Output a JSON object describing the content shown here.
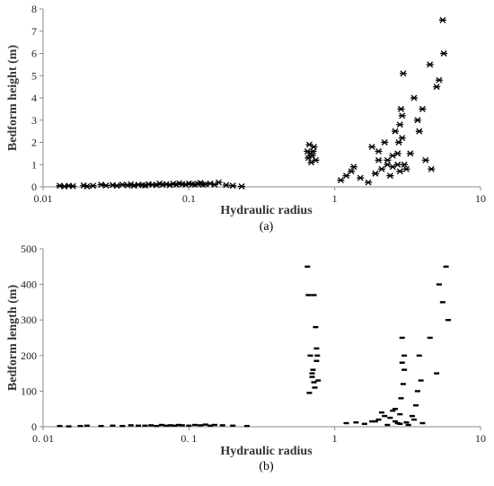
{
  "chart_data": [
    {
      "type": "scatter",
      "panel_label": "(a)",
      "xlabel": "Hydraulic radius",
      "ylabel": "Bedform height (m)",
      "xscale": "log",
      "xlim": [
        0.01,
        10
      ],
      "ylim": [
        0,
        8
      ],
      "xtick_labels": [
        "0.01",
        "0.1",
        "1",
        "10"
      ],
      "ytick_labels": [
        "0",
        "1",
        "2",
        "3",
        "4",
        "5",
        "6",
        "7",
        "8"
      ],
      "grid": false,
      "marker": "asterisk",
      "color": "#000000",
      "x": [
        0.013,
        0.014,
        0.015,
        0.016,
        0.019,
        0.02,
        0.022,
        0.025,
        0.027,
        0.03,
        0.032,
        0.035,
        0.038,
        0.04,
        0.042,
        0.045,
        0.048,
        0.05,
        0.053,
        0.056,
        0.06,
        0.063,
        0.066,
        0.07,
        0.074,
        0.078,
        0.082,
        0.086,
        0.09,
        0.095,
        0.1,
        0.105,
        0.11,
        0.115,
        0.12,
        0.125,
        0.13,
        0.14,
        0.15,
        0.16,
        0.18,
        0.2,
        0.23,
        0.65,
        0.66,
        0.68,
        0.7,
        0.72,
        0.74,
        0.67,
        0.69,
        0.71,
        1.1,
        1.2,
        1.3,
        1.35,
        1.5,
        1.7,
        1.8,
        1.9,
        2.0,
        2.1,
        2.2,
        2.3,
        2.4,
        2.5,
        2.6,
        2.7,
        2.8,
        2.9,
        3.0,
        2.75,
        2.8,
        2.85,
        2.9,
        2.95,
        3.1,
        3.3,
        3.5,
        3.7,
        3.8,
        4.0,
        4.2,
        4.5,
        4.6,
        5.0,
        5.2,
        5.5,
        5.6,
        2.5,
        2.7,
        2.0,
        1.9,
        2.3
      ],
      "y": [
        0.05,
        0.02,
        0.05,
        0.03,
        0.06,
        0.02,
        0.05,
        0.1,
        0.06,
        0.08,
        0.05,
        0.1,
        0.07,
        0.12,
        0.05,
        0.1,
        0.08,
        0.06,
        0.12,
        0.1,
        0.08,
        0.15,
        0.1,
        0.12,
        0.08,
        0.14,
        0.1,
        0.16,
        0.12,
        0.1,
        0.15,
        0.12,
        0.1,
        0.14,
        0.18,
        0.1,
        0.12,
        0.15,
        0.1,
        0.2,
        0.08,
        0.05,
        0.02,
        1.6,
        1.3,
        1.5,
        1.4,
        1.8,
        1.2,
        1.9,
        1.1,
        1.6,
        0.3,
        0.5,
        0.7,
        0.9,
        0.4,
        0.2,
        1.8,
        0.6,
        1.6,
        0.8,
        2.0,
        1.2,
        0.5,
        0.9,
        2.5,
        1.5,
        0.7,
        3.2,
        1.0,
        2.0,
        2.8,
        3.5,
        2.2,
        5.1,
        0.8,
        1.5,
        4.0,
        3.0,
        2.5,
        3.5,
        1.2,
        5.5,
        0.8,
        4.5,
        4.8,
        7.5,
        6.0,
        1.4,
        1.0,
        1.2,
        0.6,
        1.0
      ]
    },
    {
      "type": "scatter",
      "panel_label": "(b)",
      "xlabel": "Hydraulic radius",
      "ylabel": "Bedform length (m)",
      "xscale": "log",
      "xlim": [
        0.01,
        10
      ],
      "ylim": [
        0,
        500
      ],
      "xtick_labels": [
        "0. 01",
        "0. 1",
        "1",
        "10"
      ],
      "ytick_labels": [
        "0",
        "100",
        "200",
        "300",
        "400",
        "500"
      ],
      "grid": false,
      "marker": "dash",
      "color": "#000000",
      "x": [
        0.013,
        0.015,
        0.018,
        0.02,
        0.025,
        0.03,
        0.035,
        0.04,
        0.045,
        0.05,
        0.055,
        0.06,
        0.065,
        0.07,
        0.075,
        0.08,
        0.085,
        0.09,
        0.1,
        0.11,
        0.12,
        0.13,
        0.14,
        0.15,
        0.17,
        0.2,
        0.25,
        0.65,
        0.66,
        0.67,
        0.68,
        0.7,
        0.71,
        0.72,
        0.73,
        0.74,
        0.75,
        0.76,
        0.77,
        0.7,
        0.72,
        0.75,
        1.2,
        1.4,
        1.6,
        1.8,
        2.0,
        2.2,
        2.4,
        2.5,
        2.6,
        2.7,
        2.8,
        2.9,
        3.0,
        2.85,
        2.9,
        2.95,
        3.0,
        3.2,
        3.4,
        3.6,
        3.7,
        3.8,
        3.9,
        4.0,
        4.5,
        5.0,
        5.2,
        5.5,
        5.8,
        6.0,
        2.3,
        2.1,
        1.9,
        2.6,
        2.8,
        3.1,
        3.5
      ],
      "y": [
        2,
        1,
        2,
        3,
        2,
        3,
        2,
        4,
        3,
        3,
        4,
        2,
        5,
        3,
        4,
        3,
        5,
        4,
        3,
        5,
        4,
        6,
        3,
        5,
        4,
        3,
        2,
        450,
        370,
        95,
        200,
        140,
        160,
        370,
        110,
        280,
        220,
        200,
        130,
        150,
        125,
        185,
        10,
        12,
        8,
        15,
        20,
        30,
        25,
        45,
        15,
        10,
        35,
        250,
        200,
        80,
        180,
        120,
        160,
        5,
        30,
        60,
        100,
        200,
        130,
        10,
        250,
        150,
        400,
        350,
        450,
        300,
        5,
        40,
        15,
        50,
        8,
        12,
        20
      ]
    }
  ]
}
